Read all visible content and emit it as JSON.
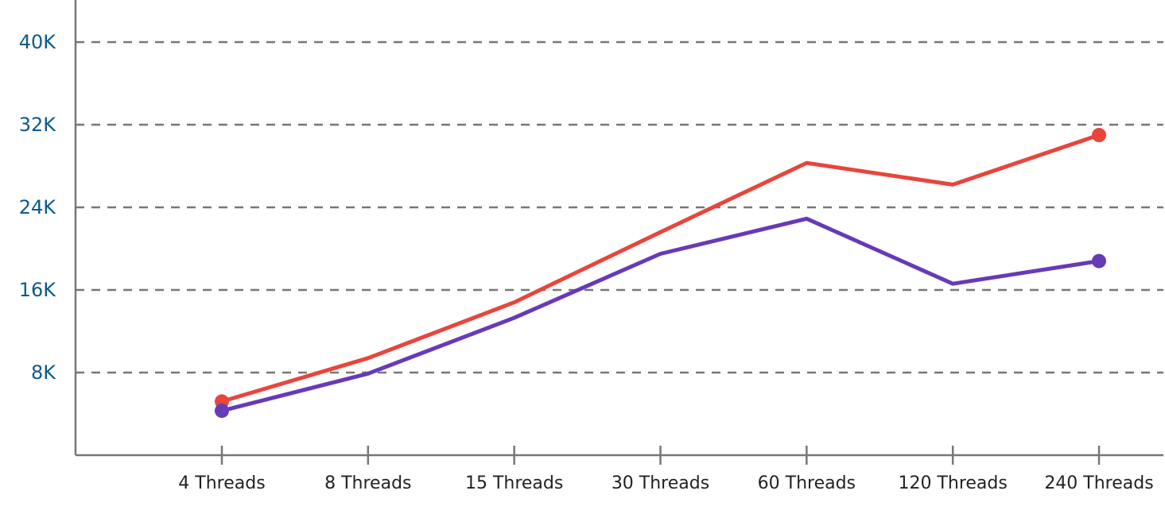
{
  "chart_data": {
    "type": "line",
    "title": "",
    "xlabel": "",
    "ylabel": "",
    "categories": [
      "4 Threads",
      "8 Threads",
      "15 Threads",
      "30 Threads",
      "60 Threads",
      "120 Threads",
      "240 Threads"
    ],
    "series": [
      {
        "color": "#e8453c",
        "values": [
          5200,
          9400,
          14800,
          21600,
          28300,
          26200,
          31000
        ]
      },
      {
        "color": "#673ab7",
        "values": [
          4300,
          7900,
          13300,
          19500,
          22900,
          16600,
          18800
        ]
      }
    ],
    "ylim": [
      0,
      42000
    ],
    "yticks": [
      8000,
      16000,
      24000,
      32000,
      40000
    ],
    "ytick_labels": [
      "8K",
      "16K",
      "24K",
      "32K",
      "40K"
    ],
    "grid": true,
    "grid_style": "dashed",
    "endpoint_markers": true,
    "colors": {
      "axis": "#777777",
      "grid": "#777777",
      "ytick_text": "#0b5a8c",
      "xtick_text": "#222222"
    }
  }
}
